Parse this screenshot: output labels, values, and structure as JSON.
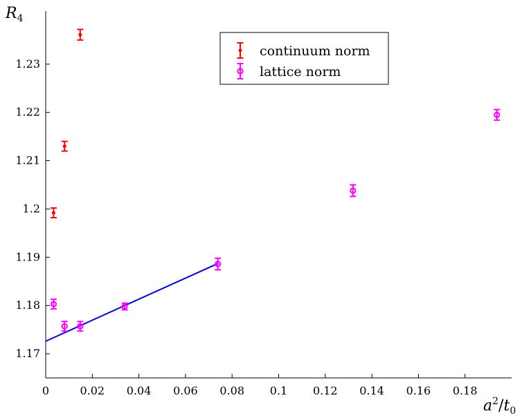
{
  "chart_data": {
    "type": "scatter",
    "xlabel_parts": {
      "a": "a",
      "exp": "2",
      "slash": "/",
      "t": "t",
      "sub": "0"
    },
    "ylabel_parts": {
      "r": "R",
      "sub": "4"
    },
    "xlim": [
      0,
      0.2
    ],
    "ylim": [
      1.165,
      1.241
    ],
    "x_ticks": [
      0,
      0.02,
      0.04,
      0.06,
      0.08,
      0.1,
      0.12,
      0.14,
      0.16,
      0.18
    ],
    "x_tick_labels": [
      "0",
      "0.02",
      "0.04",
      "0.06",
      "0.08",
      "0.1",
      "0.12",
      "0.14",
      "0.16",
      "0.18"
    ],
    "y_ticks": [
      1.17,
      1.18,
      1.19,
      1.2,
      1.21,
      1.22,
      1.23
    ],
    "y_tick_labels": [
      "1.17",
      "1.18",
      "1.19",
      "1.2",
      "1.21",
      "1.22",
      "1.23"
    ],
    "grid": false,
    "legend_position": "top-center",
    "series": [
      {
        "name": "continuum norm",
        "color": "#ff0000",
        "marker": "dot",
        "points": [
          {
            "x": 0.0034,
            "y": 1.1992,
            "err": 0.001
          },
          {
            "x": 0.0081,
            "y": 1.213,
            "err": 0.001
          },
          {
            "x": 0.0148,
            "y": 1.2361,
            "err": 0.0011
          }
        ]
      },
      {
        "name": "lattice norm",
        "color": "#ff00ff",
        "marker": "circle",
        "points": [
          {
            "x": 0.0034,
            "y": 1.1803,
            "err": 0.001
          },
          {
            "x": 0.0081,
            "y": 1.1757,
            "err": 0.001
          },
          {
            "x": 0.0148,
            "y": 1.1757,
            "err": 0.001
          },
          {
            "x": 0.0339,
            "y": 1.1798,
            "err": 0.0007
          },
          {
            "x": 0.0739,
            "y": 1.1886,
            "err": 0.0012
          },
          {
            "x": 0.1319,
            "y": 1.2038,
            "err": 0.0012
          },
          {
            "x": 0.1937,
            "y": 1.2195,
            "err": 0.0011
          }
        ]
      }
    ],
    "fit_line": {
      "color": "#0000dd",
      "x": [
        0,
        0.0739
      ],
      "y": [
        1.1726,
        1.1887
      ]
    }
  }
}
